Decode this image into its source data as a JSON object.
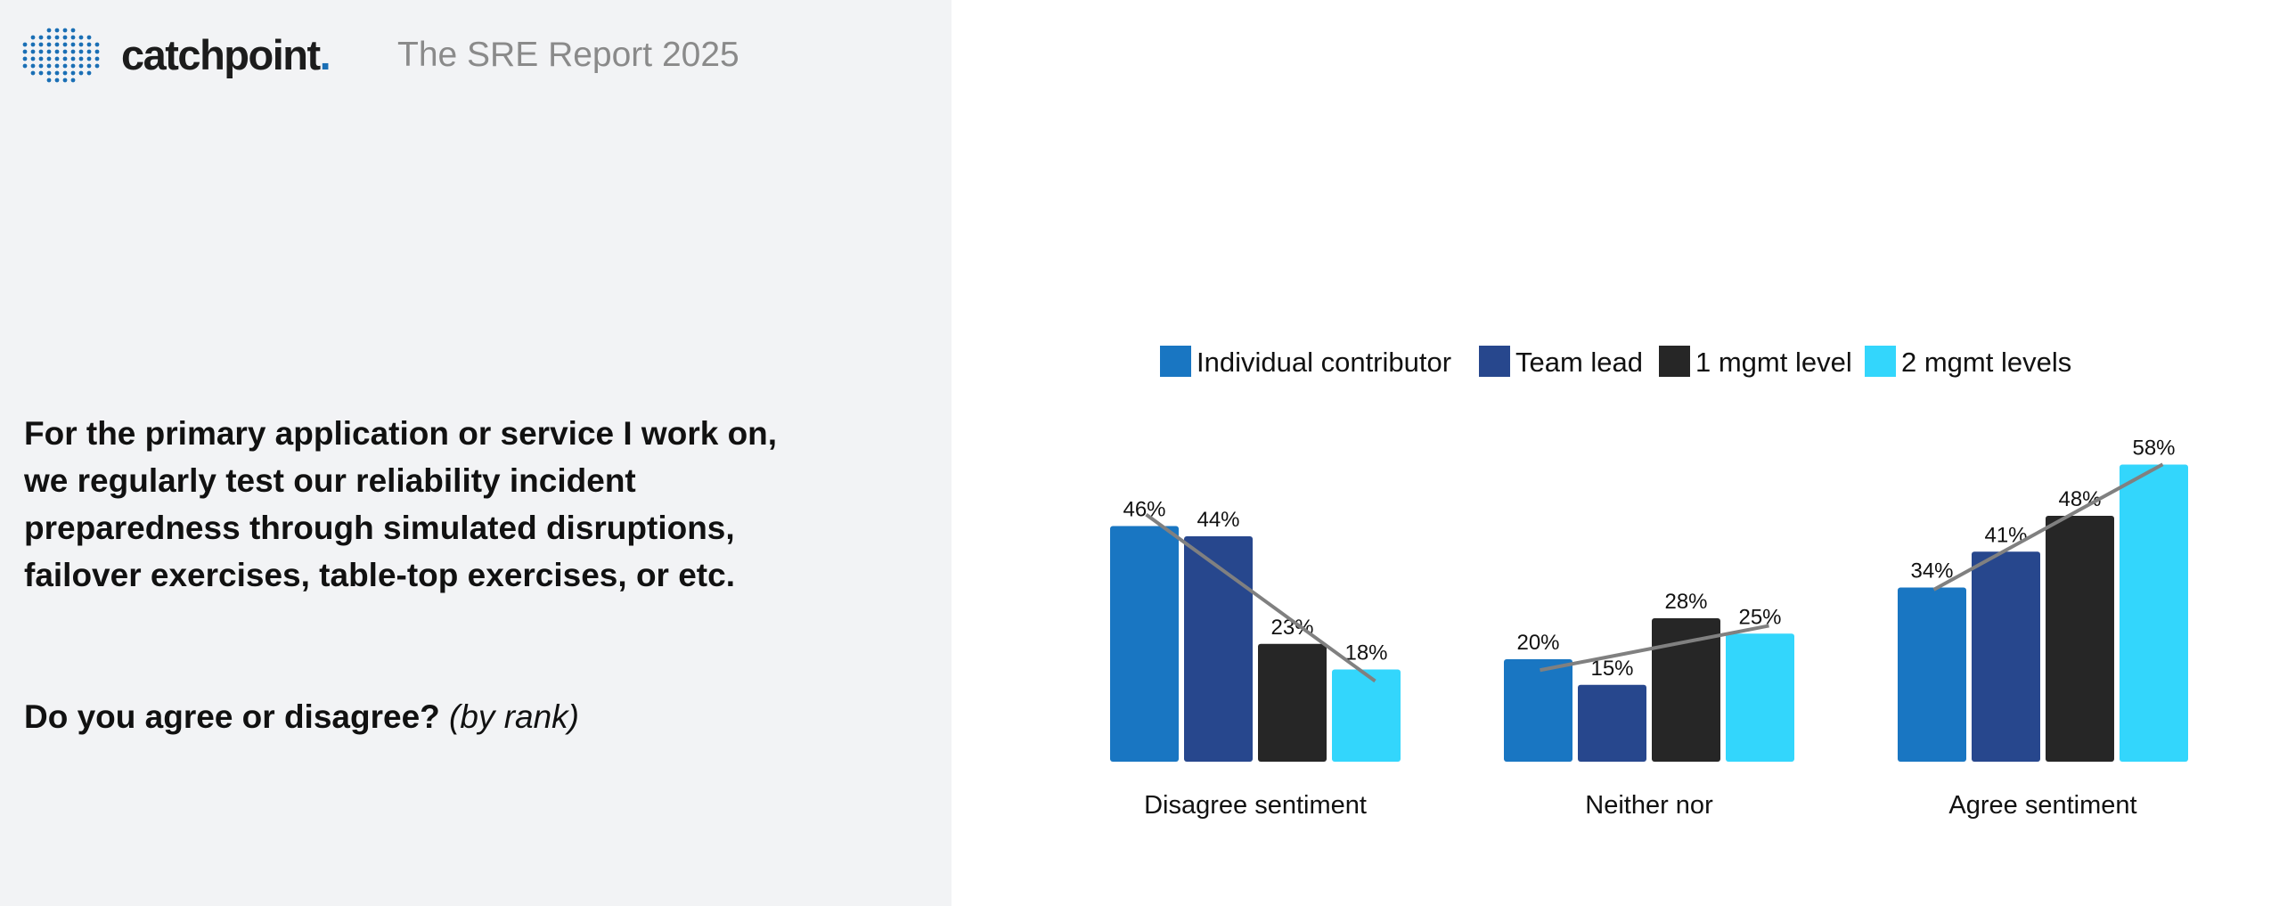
{
  "header": {
    "logo_text": "catchpoint",
    "logo_suffix": ".",
    "report_title": "The SRE Report 2025"
  },
  "question": {
    "text": "For the primary application or service I work on, we regularly test our reliability incident preparedness through simulated disruptions, failover exercises, table-top exercises, or etc.",
    "prompt": "Do you agree or disagree?",
    "prompt_note": "(by rank)"
  },
  "colors": {
    "individual_contributor": "#1976c2",
    "team_lead": "#27478d",
    "one_mgmt_level": "#262626",
    "two_mgmt_levels": "#33d6fc",
    "trend_line": "#808080",
    "brand_blue": "#1a6fb5"
  },
  "chart_data": {
    "type": "bar",
    "categories": [
      "Disagree sentiment",
      "Neither nor",
      "Agree sentiment"
    ],
    "series": [
      {
        "name": "Individual contributor",
        "values": [
          46,
          20,
          34
        ],
        "labels": [
          "46%",
          "20%",
          "34%"
        ],
        "color": "#1976c2"
      },
      {
        "name": "Team lead",
        "values": [
          44,
          15,
          41
        ],
        "labels": [
          "44%",
          "15%",
          "41%"
        ],
        "color": "#27478d"
      },
      {
        "name": "1 mgmt level",
        "values": [
          23,
          28,
          48
        ],
        "labels": [
          "23%",
          "28%",
          "48%"
        ],
        "color": "#262626"
      },
      {
        "name": "2 mgmt levels",
        "values": [
          18,
          25,
          58
        ],
        "labels": [
          "18%",
          "25%",
          "58%"
        ],
        "color": "#33d6fc"
      }
    ],
    "trend_lines": true,
    "legend_position": "top",
    "ylim": [
      0,
      60
    ],
    "grid": false,
    "xlabel": "",
    "ylabel": ""
  }
}
